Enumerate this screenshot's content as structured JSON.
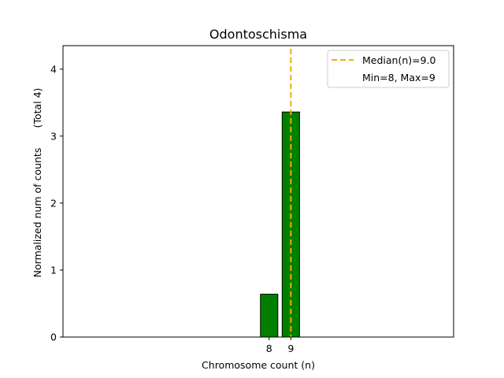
{
  "chart_data": {
    "type": "bar",
    "title": "Odontoschisma",
    "xlabel": "Chromosome count (n)",
    "ylabel": "Normalized num of counts",
    "ylabel_note": "(Total 4)",
    "categories": [
      "8",
      "9"
    ],
    "x": [
      8,
      9
    ],
    "values": [
      0.64,
      3.36
    ],
    "xlim": [
      -1.5,
      16.5
    ],
    "ylim": [
      0,
      4.35
    ],
    "yticks": [
      0,
      1,
      2,
      3,
      4
    ],
    "xticks": [
      8,
      9
    ],
    "bar_color": "#008000",
    "bar_edge_color": "#000000",
    "median_value": 9.0,
    "median_color": "#f0ad00",
    "legend": {
      "position": "top-right",
      "median_label": "Median(n)=9.0",
      "range_label": "Min=8, Max=9"
    },
    "grid": false
  }
}
